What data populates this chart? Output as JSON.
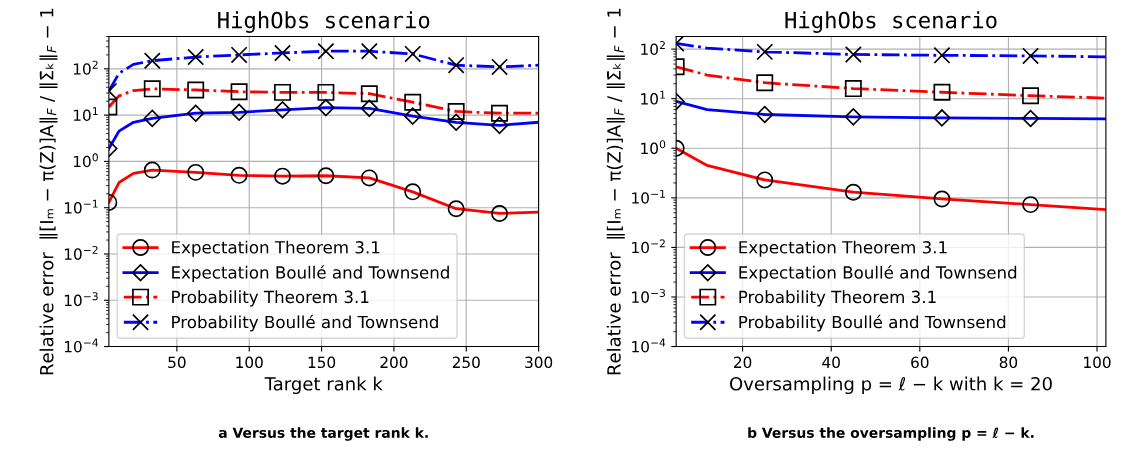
{
  "chart_data": [
    {
      "type": "line",
      "title": "HighObs scenario",
      "xlabel": "Target rank k",
      "ylabel": "Relative error  ‖[Iₘ − π(Z)]A‖$_{F}$ / ‖Σ̄ₖ‖$_{F}$ − 1",
      "log": "y",
      "grid": true,
      "legend": "bottom left",
      "xlim": [
        3,
        300
      ],
      "xticks": [
        50,
        100,
        150,
        200,
        250,
        300
      ],
      "ylim": [
        0.0001,
        500
      ],
      "yticks": [
        {
          "value": 0.0001,
          "label": "10$^{−4}$"
        },
        {
          "value": 0.001,
          "label": "10$^{−3}$"
        },
        {
          "value": 0.01,
          "label": "10$^{−2}$"
        },
        {
          "value": 0.1,
          "label": "10$^{−1}$"
        },
        {
          "value": 1,
          "label": "10$^{0}$"
        },
        {
          "value": 10,
          "label": "10$^{1}$"
        },
        {
          "value": 100,
          "label": "10$^{2}$"
        }
      ],
      "annotations": [
        "a Versus the target rank k."
      ],
      "series": [
        {
          "name": "Expectation Theorem 3.1",
          "color": "#ff0000",
          "marker": "circle",
          "line_style": "solid",
          "x": [
            3,
            10,
            20,
            33,
            63,
            93,
            123,
            153,
            183,
            213,
            243,
            273,
            300
          ],
          "values": [
            0.13,
            0.35,
            0.55,
            0.65,
            0.58,
            0.5,
            0.48,
            0.49,
            0.44,
            0.22,
            0.095,
            0.075,
            0.08
          ]
        },
        {
          "name": "Expectation Boullé and Townsend",
          "color": "#0000ff",
          "marker": "diamond",
          "line_style": "solid",
          "x": [
            3,
            10,
            20,
            33,
            63,
            93,
            123,
            153,
            183,
            213,
            243,
            273,
            300
          ],
          "values": [
            1.9,
            4.5,
            7,
            8.5,
            11,
            11.5,
            13,
            14.5,
            14,
            9.5,
            7,
            6,
            7
          ]
        },
        {
          "name": "Probability Theorem 3.1",
          "color": "#ff0000",
          "marker": "square",
          "line_style": "dashdot",
          "x": [
            3,
            10,
            20,
            33,
            63,
            93,
            123,
            153,
            183,
            213,
            243,
            273,
            300
          ],
          "values": [
            15,
            26,
            34,
            37,
            35,
            32,
            31,
            31,
            29,
            19,
            12,
            11,
            11
          ]
        },
        {
          "name": "Probability Boullé and Townsend",
          "color": "#0000ff",
          "marker": "cross",
          "line_style": "dashdot",
          "x": [
            3,
            10,
            20,
            33,
            63,
            93,
            123,
            153,
            183,
            213,
            243,
            273,
            300
          ],
          "values": [
            33,
            80,
            125,
            150,
            180,
            200,
            220,
            240,
            240,
            210,
            120,
            110,
            120
          ]
        }
      ]
    },
    {
      "type": "line",
      "title": "HighObs scenario",
      "xlabel": "Oversampling p = ℓ − k with k = 20",
      "ylabel": "Relative error  ‖[Iₘ − π(Z)]A‖$_{F}$ / ‖Σ̄ₖ‖$_{F}$ − 1",
      "log": "y",
      "grid": true,
      "legend": "bottom left",
      "xlim": [
        5,
        102
      ],
      "xticks": [
        20,
        40,
        60,
        80,
        100
      ],
      "ylim": [
        0.0001,
        180
      ],
      "yticks": [
        {
          "value": 0.0001,
          "label": "10$^{−4}$"
        },
        {
          "value": 0.001,
          "label": "10$^{−3}$"
        },
        {
          "value": 0.01,
          "label": "10$^{−2}$"
        },
        {
          "value": 0.1,
          "label": "10$^{−1}$"
        },
        {
          "value": 1,
          "label": "10$^{0}$"
        },
        {
          "value": 10,
          "label": "10$^{1}$"
        },
        {
          "value": 100,
          "label": "10$^{2}$"
        }
      ],
      "annotations": [
        "b Versus the oversampling p = ℓ − k."
      ],
      "series": [
        {
          "name": "Expectation Theorem 3.1",
          "color": "#ff0000",
          "marker": "circle",
          "line_style": "solid",
          "x": [
            5,
            12,
            25,
            45,
            65,
            85,
            102
          ],
          "values": [
            1.0,
            0.45,
            0.23,
            0.13,
            0.095,
            0.073,
            0.058
          ]
        },
        {
          "name": "Expectation Boullé and Townsend",
          "color": "#0000ff",
          "marker": "diamond",
          "line_style": "solid",
          "x": [
            5,
            12,
            25,
            45,
            65,
            85,
            102
          ],
          "values": [
            8.8,
            6,
            4.8,
            4.3,
            4.1,
            4.0,
            3.9
          ]
        },
        {
          "name": "Probability Theorem 3.1",
          "color": "#ff0000",
          "marker": "square",
          "line_style": "dashdot",
          "x": [
            5,
            12,
            25,
            45,
            65,
            85,
            102
          ],
          "values": [
            44,
            30,
            21,
            16,
            13.5,
            11.5,
            10.3
          ]
        },
        {
          "name": "Probability Boullé and Townsend",
          "color": "#0000ff",
          "marker": "cross",
          "line_style": "dashdot",
          "x": [
            5,
            12,
            25,
            45,
            65,
            85,
            102
          ],
          "values": [
            130,
            105,
            88,
            78,
            75,
            73,
            70
          ]
        }
      ]
    }
  ]
}
